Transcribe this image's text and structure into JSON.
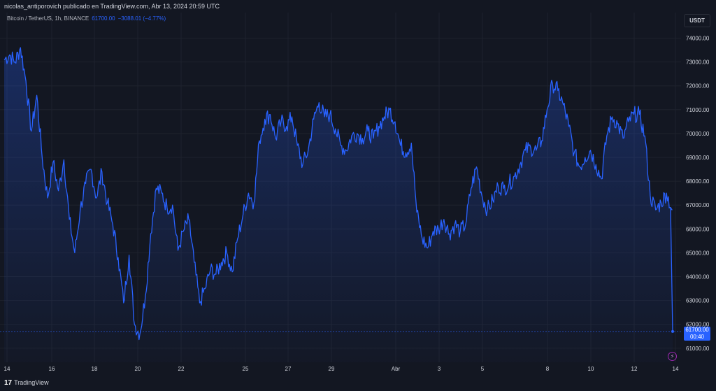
{
  "header": {
    "publisher_line": "nicolas_antiporovich publicado en TradingView.com, Abr 13, 2024 20:59 UTC"
  },
  "legend": {
    "symbol": "Bitcoin / TetherUS, 1h, BINANCE",
    "last_price": "61700.00",
    "change": "−3088.01 (−4.77%)"
  },
  "currency_button": "USDT",
  "price_tag": {
    "price": "61700.00",
    "countdown": "00:40"
  },
  "footer": {
    "brand": "TradingView",
    "logo": "17"
  },
  "colors": {
    "line": "#2962ff",
    "background": "#131722",
    "grid": "#1e222d",
    "axis_text": "#d1d4dc"
  },
  "chart_data": {
    "type": "area",
    "title": "Bitcoin / TetherUS, 1h, BINANCE",
    "xlabel": "",
    "ylabel": "",
    "ylim": [
      60700,
      74600
    ],
    "x_tick_labels": [
      "14",
      "16",
      "18",
      "20",
      "22",
      "25",
      "27",
      "29",
      "Abr",
      "3",
      "5",
      "8",
      "10",
      "12",
      "14"
    ],
    "y_tick_labels": [
      "61000.00",
      "62000.00",
      "63000.00",
      "64000.00",
      "65000.00",
      "66000.00",
      "67000.00",
      "68000.00",
      "69000.00",
      "70000.00",
      "71000.00",
      "72000.00",
      "73000.00",
      "74000.00"
    ],
    "grid": true,
    "series": [
      {
        "points": [
          [
            "Mar 14 00:00",
            73100
          ],
          [
            "Mar 14 06:00",
            73300
          ],
          [
            "Mar 14 12:00",
            73000
          ],
          [
            "Mar 14 18:00",
            73600
          ],
          [
            "Mar 15 00:00",
            72200
          ],
          [
            "Mar 15 06:00",
            70100
          ],
          [
            "Mar 15 12:00",
            71600
          ],
          [
            "Mar 15 18:00",
            69000
          ],
          [
            "Mar 16 00:00",
            67300
          ],
          [
            "Mar 16 06:00",
            68800
          ],
          [
            "Mar 16 12:00",
            67600
          ],
          [
            "Mar 16 18:00",
            68900
          ],
          [
            "Mar 17 00:00",
            66400
          ],
          [
            "Mar 17 06:00",
            65000
          ],
          [
            "Mar 17 12:00",
            66800
          ],
          [
            "Mar 17 18:00",
            67900
          ],
          [
            "Mar 18 00:00",
            68500
          ],
          [
            "Mar 18 06:00",
            67300
          ],
          [
            "Mar 18 12:00",
            68400
          ],
          [
            "Mar 18 18:00",
            67100
          ],
          [
            "Mar 19 00:00",
            66200
          ],
          [
            "Mar 19 06:00",
            64800
          ],
          [
            "Mar 19 12:00",
            62900
          ],
          [
            "Mar 19 18:00",
            64900
          ],
          [
            "Mar 20 00:00",
            62000
          ],
          [
            "Mar 20 06:00",
            61600
          ],
          [
            "Mar 20 12:00",
            63200
          ],
          [
            "Mar 20 18:00",
            65800
          ],
          [
            "Mar 21 00:00",
            67700
          ],
          [
            "Mar 21 06:00",
            67500
          ],
          [
            "Mar 21 12:00",
            66900
          ],
          [
            "Mar 21 18:00",
            67000
          ],
          [
            "Mar 22 00:00",
            65100
          ],
          [
            "Mar 22 06:00",
            65900
          ],
          [
            "Mar 22 12:00",
            66400
          ],
          [
            "Mar 22 18:00",
            64600
          ],
          [
            "Mar 23 00:00",
            62900
          ],
          [
            "Mar 23 06:00",
            63500
          ],
          [
            "Mar 23 12:00",
            64300
          ],
          [
            "Mar 23 18:00",
            64100
          ],
          [
            "Mar 24 00:00",
            64600
          ],
          [
            "Mar 24 06:00",
            65000
          ],
          [
            "Mar 24 12:00",
            64200
          ],
          [
            "Mar 24 18:00",
            65600
          ],
          [
            "Mar 25 00:00",
            66600
          ],
          [
            "Mar 25 06:00",
            67500
          ],
          [
            "Mar 25 12:00",
            67100
          ],
          [
            "Mar 25 18:00",
            69700
          ],
          [
            "Mar 26 00:00",
            70600
          ],
          [
            "Mar 26 06:00",
            70800
          ],
          [
            "Mar 26 12:00",
            69800
          ],
          [
            "Mar 26 18:00",
            70500
          ],
          [
            "Mar 27 00:00",
            70300
          ],
          [
            "Mar 27 06:00",
            70700
          ],
          [
            "Mar 27 12:00",
            69500
          ],
          [
            "Mar 27 18:00",
            68700
          ],
          [
            "Mar 28 00:00",
            69300
          ],
          [
            "Mar 28 06:00",
            70600
          ],
          [
            "Mar 28 12:00",
            71300
          ],
          [
            "Mar 28 18:00",
            70700
          ],
          [
            "Mar 29 00:00",
            70800
          ],
          [
            "Mar 29 06:00",
            70200
          ],
          [
            "Mar 29 12:00",
            69500
          ],
          [
            "Mar 29 18:00",
            69300
          ],
          [
            "Mar 30 00:00",
            69900
          ],
          [
            "Mar 30 06:00",
            70000
          ],
          [
            "Mar 30 12:00",
            69800
          ],
          [
            "Mar 30 18:00",
            70100
          ],
          [
            "Mar 31 00:00",
            69800
          ],
          [
            "Mar 31 06:00",
            70300
          ],
          [
            "Mar 31 12:00",
            70700
          ],
          [
            "Mar 31 18:00",
            71000
          ],
          [
            "Abr 1 00:00",
            70500
          ],
          [
            "Abr 1 06:00",
            69500
          ],
          [
            "Abr 1 12:00",
            69200
          ],
          [
            "Abr 1 18:00",
            69600
          ],
          [
            "Abr 2 00:00",
            66700
          ],
          [
            "Abr 2 06:00",
            65600
          ],
          [
            "Abr 2 12:00",
            65200
          ],
          [
            "Abr 2 18:00",
            65900
          ],
          [
            "Abr 3 00:00",
            66000
          ],
          [
            "Abr 3 06:00",
            66400
          ],
          [
            "Abr 3 12:00",
            65800
          ],
          [
            "Abr 3 18:00",
            66200
          ],
          [
            "Abr 4 00:00",
            65900
          ],
          [
            "Abr 4 06:00",
            66200
          ],
          [
            "Abr 4 12:00",
            67700
          ],
          [
            "Abr 4 18:00",
            68600
          ],
          [
            "Abr 5 00:00",
            67400
          ],
          [
            "Abr 5 06:00",
            66800
          ],
          [
            "Abr 5 12:00",
            67200
          ],
          [
            "Abr 5 18:00",
            67800
          ],
          [
            "Abr 6 00:00",
            67700
          ],
          [
            "Abr 6 06:00",
            67900
          ],
          [
            "Abr 6 12:00",
            68200
          ],
          [
            "Abr 6 18:00",
            68700
          ],
          [
            "Abr 7 00:00",
            69300
          ],
          [
            "Abr 7 06:00",
            69400
          ],
          [
            "Abr 7 12:00",
            69300
          ],
          [
            "Abr 7 18:00",
            69700
          ],
          [
            "Abr 8 00:00",
            71000
          ],
          [
            "Abr 8 06:00",
            72100
          ],
          [
            "Abr 8 12:00",
            71800
          ],
          [
            "Abr 8 18:00",
            71200
          ],
          [
            "Abr 9 00:00",
            70300
          ],
          [
            "Abr 9 06:00",
            69200
          ],
          [
            "Abr 9 12:00",
            68600
          ],
          [
            "Abr 9 18:00",
            69000
          ],
          [
            "Abr 10 00:00",
            69300
          ],
          [
            "Abr 10 06:00",
            68700
          ],
          [
            "Abr 10 12:00",
            68100
          ],
          [
            "Abr 10 18:00",
            69900
          ],
          [
            "Abr 11 00:00",
            70700
          ],
          [
            "Abr 11 06:00",
            70400
          ],
          [
            "Abr 11 12:00",
            69800
          ],
          [
            "Abr 11 18:00",
            70500
          ],
          [
            "Abr 12 00:00",
            70800
          ],
          [
            "Abr 12 06:00",
            70800
          ],
          [
            "Abr 12 12:00",
            69900
          ],
          [
            "Abr 12 18:00",
            67400
          ],
          [
            "Abr 13 00:00",
            66800
          ],
          [
            "Abr 13 06:00",
            67100
          ],
          [
            "Abr 13 12:00",
            67500
          ],
          [
            "Abr 13 18:00",
            66800
          ],
          [
            "Abr 13 20:59",
            61700
          ]
        ]
      }
    ]
  }
}
